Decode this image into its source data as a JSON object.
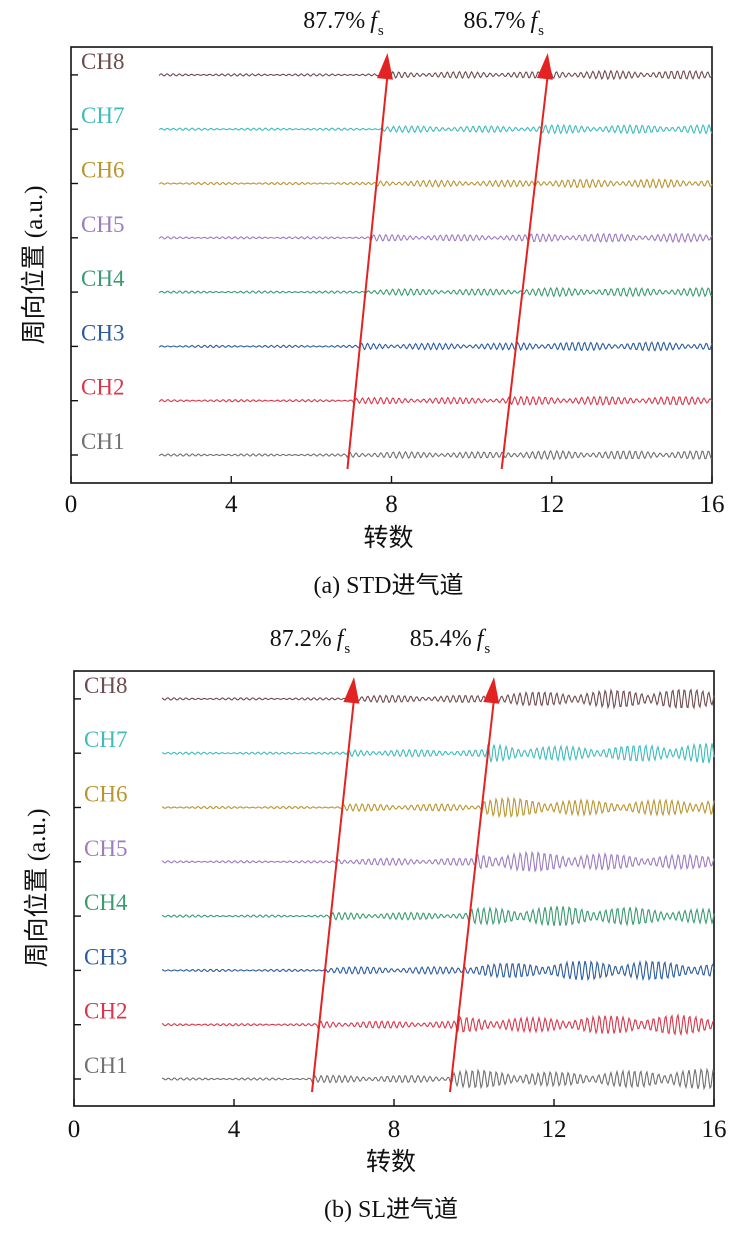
{
  "channel_colors": {
    "CH1": "#707070",
    "CH2": "#d9364a",
    "CH3": "#2b5c9e",
    "CH4": "#3a9a70",
    "CH5": "#9b7cc0",
    "CH6": "#b9952f",
    "CH7": "#3fbbbb",
    "CH8": "#6e4b4f"
  },
  "arrow_color": "#e32222",
  "chart_data": [
    {
      "type": "line",
      "panel": "a",
      "caption": "(a) STD进气道",
      "xlabel": "转数",
      "ylabel": "周向位置 (a.u.)",
      "xlim": [
        0,
        16
      ],
      "xticks": [
        "0",
        "4",
        "8",
        "12",
        "16"
      ],
      "channels": [
        "CH1",
        "CH2",
        "CH3",
        "CH4",
        "CH5",
        "CH6",
        "CH7",
        "CH8"
      ],
      "disturbance_onsets": [
        {
          "label_value": "87.7%",
          "label_symbol": "f",
          "label_sub": "s",
          "x_start": 6.9,
          "x_end": 7.9
        },
        {
          "label_value": "86.7%",
          "label_symbol": "f",
          "label_sub": "s",
          "x_start": 10.75,
          "x_end": 11.9
        }
      ]
    },
    {
      "type": "line",
      "panel": "b",
      "caption": "(b) SL进气道",
      "xlabel": "转数",
      "ylabel": "周向位置 (a.u.)",
      "xlim": [
        0,
        16
      ],
      "xticks": [
        "0",
        "4",
        "8",
        "12",
        "16"
      ],
      "channels": [
        "CH1",
        "CH2",
        "CH3",
        "CH4",
        "CH5",
        "CH6",
        "CH7",
        "CH8"
      ],
      "disturbance_onsets": [
        {
          "label_value": "87.2%",
          "label_symbol": "f",
          "label_sub": "s",
          "x_start": 5.95,
          "x_end": 7.0
        },
        {
          "label_value": "85.4%",
          "label_symbol": "f",
          "label_sub": "s",
          "x_start": 9.4,
          "x_end": 10.5
        }
      ]
    }
  ]
}
